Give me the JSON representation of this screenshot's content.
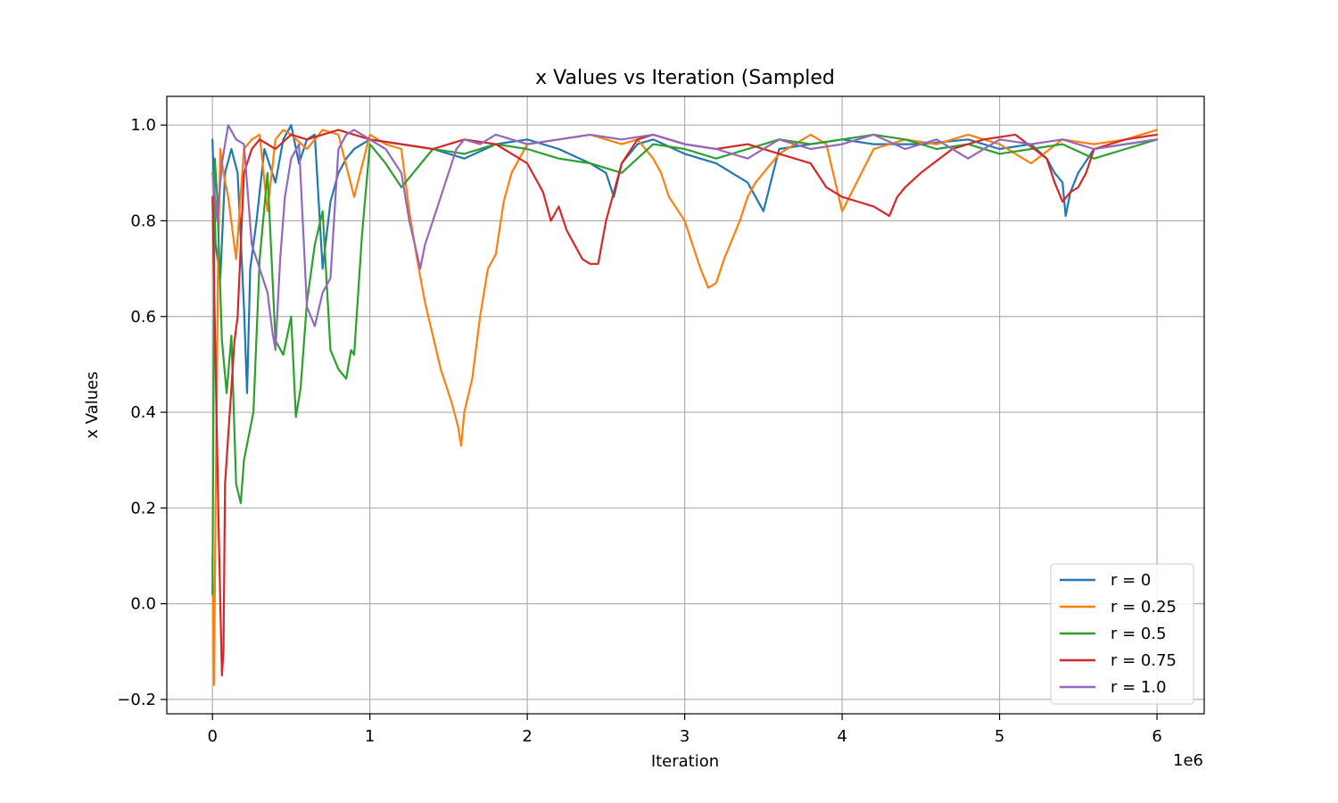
{
  "chart_data": {
    "type": "line",
    "title": "x Values vs Iteration (Sampled",
    "xlabel": "Iteration",
    "ylabel": "x Values",
    "x_offset_label": "1e6",
    "xlim": [
      -290000,
      6300000
    ],
    "ylim": [
      -0.23,
      1.06
    ],
    "xticks": [
      0,
      1000000,
      2000000,
      3000000,
      4000000,
      5000000,
      6000000
    ],
    "xtick_labels": [
      "0",
      "1",
      "2",
      "3",
      "4",
      "5",
      "6"
    ],
    "yticks": [
      -0.2,
      0.0,
      0.2,
      0.4,
      0.6,
      0.8,
      1.0
    ],
    "ytick_labels": [
      "−0.2",
      "0.0",
      "0.2",
      "0.4",
      "0.6",
      "0.8",
      "1.0"
    ],
    "grid": true,
    "legend_position": "lower-right",
    "series": [
      {
        "name": "r = 0",
        "color": "#1f77b4",
        "x": [
          0,
          20000,
          50000,
          80000,
          120000,
          160000,
          200000,
          220000,
          240000,
          280000,
          330000,
          400000,
          450000,
          500000,
          550000,
          600000,
          650000,
          700000,
          750000,
          800000,
          850000,
          900000,
          1000000,
          1200000,
          1400000,
          1600000,
          1800000,
          2000000,
          2200000,
          2400000,
          2500000,
          2550000,
          2600000,
          2700000,
          2800000,
          3000000,
          3200000,
          3400000,
          3500000,
          3600000,
          3800000,
          4000000,
          4200000,
          4500000,
          4800000,
          5000000,
          5200000,
          5300000,
          5350000,
          5400000,
          5420000,
          5450000,
          5500000,
          5600000,
          5800000,
          6000000
        ],
        "y": [
          0.97,
          0.75,
          0.68,
          0.9,
          0.95,
          0.9,
          0.62,
          0.44,
          0.7,
          0.8,
          0.95,
          0.88,
          0.97,
          1.0,
          0.92,
          0.97,
          0.98,
          0.7,
          0.84,
          0.9,
          0.93,
          0.95,
          0.97,
          0.96,
          0.95,
          0.93,
          0.96,
          0.97,
          0.95,
          0.92,
          0.9,
          0.85,
          0.92,
          0.96,
          0.97,
          0.94,
          0.92,
          0.88,
          0.82,
          0.95,
          0.96,
          0.97,
          0.96,
          0.96,
          0.97,
          0.95,
          0.96,
          0.93,
          0.9,
          0.88,
          0.81,
          0.86,
          0.9,
          0.95,
          0.96,
          0.97
        ]
      },
      {
        "name": "r = 0.25",
        "color": "#ff7f0e",
        "x": [
          0,
          10000,
          20000,
          35000,
          50000,
          70000,
          100000,
          150000,
          200000,
          250000,
          300000,
          350000,
          400000,
          450000,
          500000,
          600000,
          700000,
          800000,
          900000,
          1000000,
          1100000,
          1200000,
          1250000,
          1300000,
          1350000,
          1400000,
          1450000,
          1500000,
          1520000,
          1560000,
          1580000,
          1600000,
          1650000,
          1700000,
          1750000,
          1800000,
          1850000,
          1900000,
          1950000,
          2000000,
          2200000,
          2400000,
          2600000,
          2700000,
          2800000,
          2850000,
          2900000,
          3000000,
          3050000,
          3100000,
          3150000,
          3200000,
          3250000,
          3300000,
          3350000,
          3400000,
          3450000,
          3500000,
          3600000,
          3700000,
          3800000,
          3900000,
          4000000,
          4200000,
          4400000,
          4600000,
          4800000,
          5000000,
          5200000,
          5400000,
          5600000,
          5800000,
          6000000
        ],
        "y": [
          0.1,
          -0.17,
          0.2,
          0.7,
          0.95,
          0.9,
          0.85,
          0.72,
          0.95,
          0.97,
          0.98,
          0.82,
          0.97,
          0.99,
          0.98,
          0.95,
          0.99,
          0.98,
          0.85,
          0.98,
          0.96,
          0.95,
          0.82,
          0.72,
          0.63,
          0.56,
          0.49,
          0.44,
          0.42,
          0.37,
          0.33,
          0.4,
          0.47,
          0.6,
          0.7,
          0.73,
          0.84,
          0.9,
          0.93,
          0.96,
          0.97,
          0.98,
          0.96,
          0.97,
          0.93,
          0.9,
          0.85,
          0.8,
          0.75,
          0.7,
          0.66,
          0.67,
          0.72,
          0.76,
          0.8,
          0.85,
          0.88,
          0.9,
          0.94,
          0.96,
          0.98,
          0.96,
          0.82,
          0.95,
          0.97,
          0.96,
          0.98,
          0.96,
          0.92,
          0.97,
          0.96,
          0.97,
          0.99
        ]
      },
      {
        "name": "r = 0.5",
        "color": "#2ca02c",
        "x": [
          0,
          15000,
          30000,
          60000,
          90000,
          120000,
          150000,
          180000,
          200000,
          230000,
          260000,
          300000,
          350000,
          400000,
          450000,
          500000,
          530000,
          560000,
          600000,
          650000,
          700000,
          750000,
          800000,
          850000,
          880000,
          900000,
          950000,
          1000000,
          1100000,
          1200000,
          1400000,
          1600000,
          1800000,
          2000000,
          2200000,
          2400000,
          2600000,
          2800000,
          3000000,
          3200000,
          3400000,
          3600000,
          3800000,
          4000000,
          4200000,
          4400000,
          4600000,
          4800000,
          5000000,
          5200000,
          5400000,
          5600000,
          5800000,
          6000000
        ],
        "y": [
          0.02,
          0.93,
          0.85,
          0.55,
          0.44,
          0.56,
          0.25,
          0.21,
          0.3,
          0.35,
          0.4,
          0.72,
          0.9,
          0.55,
          0.52,
          0.6,
          0.39,
          0.45,
          0.63,
          0.75,
          0.82,
          0.53,
          0.49,
          0.47,
          0.53,
          0.52,
          0.77,
          0.96,
          0.92,
          0.87,
          0.95,
          0.94,
          0.96,
          0.95,
          0.93,
          0.92,
          0.9,
          0.96,
          0.95,
          0.93,
          0.95,
          0.97,
          0.96,
          0.97,
          0.98,
          0.97,
          0.95,
          0.96,
          0.94,
          0.95,
          0.96,
          0.93,
          0.95,
          0.97
        ]
      },
      {
        "name": "r = 0.75",
        "color": "#d62728",
        "x": [
          0,
          20000,
          40000,
          60000,
          70000,
          80000,
          100000,
          120000,
          140000,
          160000,
          180000,
          200000,
          250000,
          300000,
          400000,
          500000,
          600000,
          700000,
          800000,
          900000,
          1000000,
          1200000,
          1400000,
          1600000,
          1800000,
          2000000,
          2100000,
          2150000,
          2200000,
          2250000,
          2300000,
          2350000,
          2400000,
          2450000,
          2500000,
          2600000,
          2700000,
          2800000,
          3000000,
          3200000,
          3400000,
          3600000,
          3800000,
          3900000,
          4000000,
          4100000,
          4200000,
          4250000,
          4300000,
          4350000,
          4400000,
          4500000,
          4700000,
          4900000,
          5100000,
          5300000,
          5350000,
          5400000,
          5450000,
          5500000,
          5550000,
          5600000,
          5800000,
          6000000
        ],
        "y": [
          0.85,
          0.5,
          0.15,
          -0.15,
          -0.1,
          0.25,
          0.35,
          0.45,
          0.55,
          0.6,
          0.75,
          0.9,
          0.95,
          0.97,
          0.95,
          0.98,
          0.97,
          0.98,
          0.99,
          0.98,
          0.97,
          0.96,
          0.95,
          0.97,
          0.96,
          0.92,
          0.86,
          0.8,
          0.83,
          0.78,
          0.75,
          0.72,
          0.71,
          0.71,
          0.8,
          0.92,
          0.97,
          0.98,
          0.96,
          0.95,
          0.96,
          0.94,
          0.92,
          0.87,
          0.85,
          0.84,
          0.83,
          0.82,
          0.81,
          0.85,
          0.87,
          0.9,
          0.95,
          0.97,
          0.98,
          0.93,
          0.88,
          0.84,
          0.86,
          0.87,
          0.9,
          0.95,
          0.97,
          0.98
        ]
      },
      {
        "name": "r = 1.0",
        "color": "#9467bd",
        "x": [
          0,
          30000,
          60000,
          100000,
          150000,
          200000,
          250000,
          300000,
          350000,
          380000,
          400000,
          430000,
          460000,
          500000,
          550000,
          600000,
          650000,
          700000,
          750000,
          800000,
          850000,
          900000,
          1000000,
          1100000,
          1200000,
          1250000,
          1300000,
          1320000,
          1350000,
          1400000,
          1450000,
          1500000,
          1550000,
          1600000,
          1700000,
          1800000,
          2000000,
          2200000,
          2400000,
          2600000,
          2800000,
          3000000,
          3200000,
          3400000,
          3600000,
          3800000,
          4000000,
          4200000,
          4400000,
          4600000,
          4800000,
          5000000,
          5200000,
          5400000,
          5600000,
          5800000,
          6000000
        ],
        "y": [
          0.9,
          0.8,
          0.92,
          1.0,
          0.97,
          0.96,
          0.75,
          0.7,
          0.65,
          0.57,
          0.53,
          0.72,
          0.85,
          0.93,
          0.96,
          0.62,
          0.58,
          0.65,
          0.68,
          0.95,
          0.98,
          0.99,
          0.97,
          0.95,
          0.9,
          0.8,
          0.73,
          0.7,
          0.75,
          0.8,
          0.85,
          0.9,
          0.95,
          0.97,
          0.96,
          0.98,
          0.96,
          0.97,
          0.98,
          0.97,
          0.98,
          0.96,
          0.95,
          0.93,
          0.97,
          0.95,
          0.96,
          0.98,
          0.95,
          0.97,
          0.93,
          0.97,
          0.96,
          0.97,
          0.95,
          0.96,
          0.97
        ]
      }
    ]
  }
}
